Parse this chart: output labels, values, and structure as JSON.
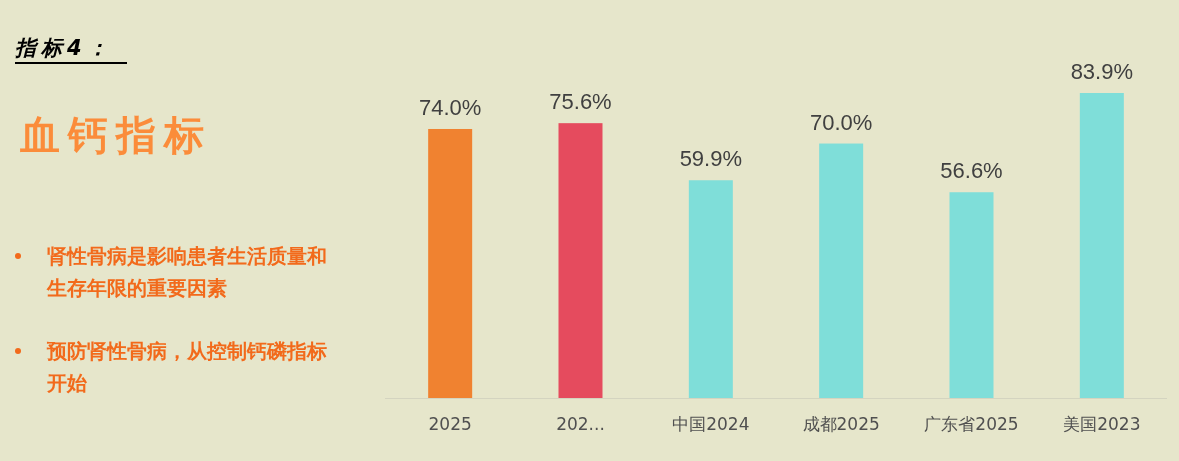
{
  "chart_data": {
    "type": "bar",
    "subtitle": "指标4：",
    "title": "血钙指标",
    "annotations": [
      "肾性骨病是影响患者生活质量和生存年限的重要因素",
      "预防肾性骨病，从控制钙磷指标开始"
    ],
    "categories": [
      "2025",
      "202...",
      "中国2024",
      "成都2025",
      "广东省2025",
      "美国2023"
    ],
    "values": [
      74.0,
      75.6,
      59.9,
      70.0,
      56.6,
      83.9
    ],
    "colors": [
      "#f08230",
      "#e54b5e",
      "#7fded9",
      "#7fded9",
      "#7fded9",
      "#7fded9"
    ],
    "value_labels": [
      "74.0%",
      "75.6%",
      "59.9%",
      "70.0%",
      "56.6%",
      "83.9%"
    ]
  }
}
